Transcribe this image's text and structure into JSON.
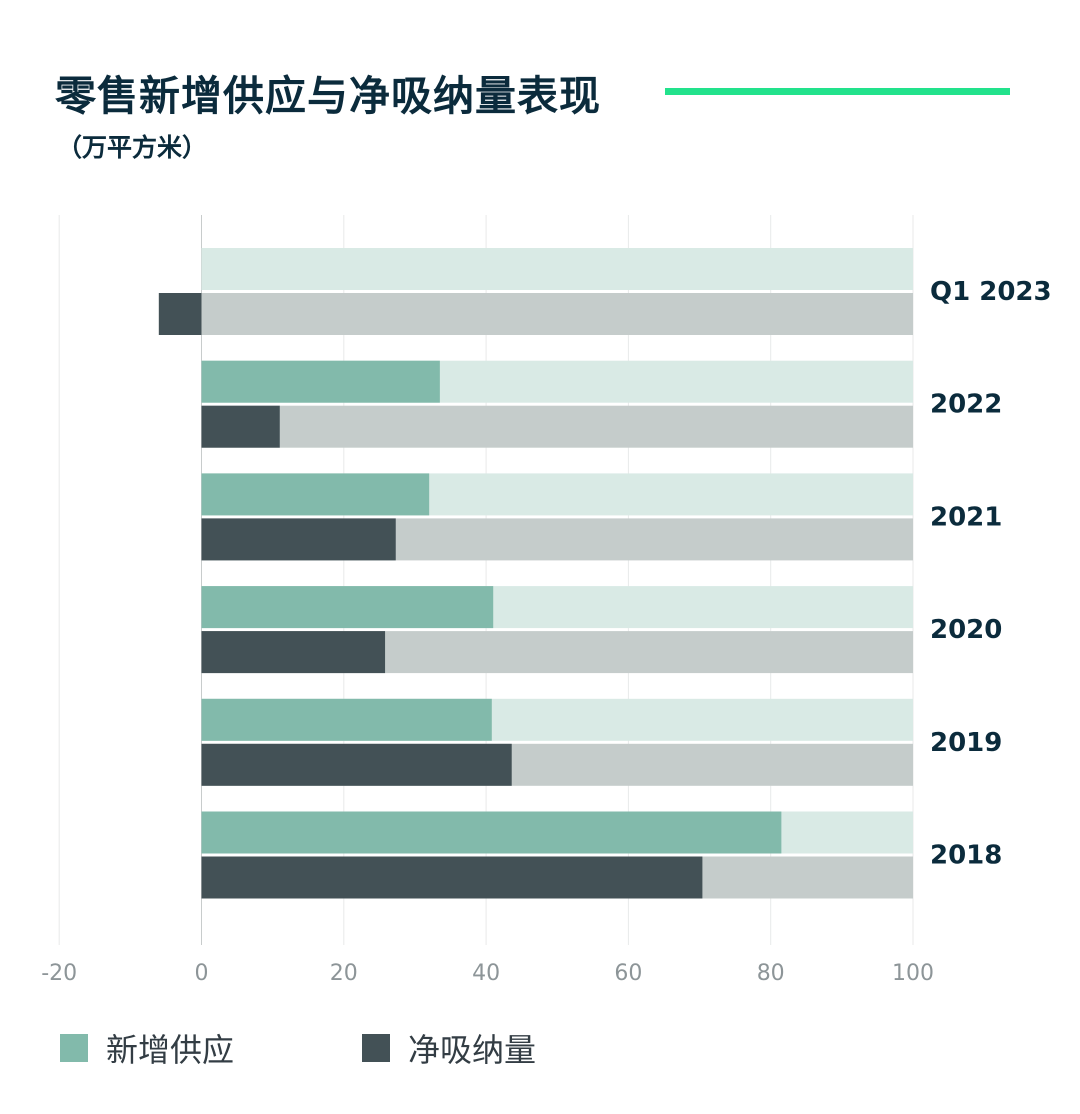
{
  "title": "零售新增供应与净吸纳量表现",
  "subtitle": "（万平方米）",
  "colors": {
    "title": "#0b2b3c",
    "accent_rule": "#22e28c",
    "supply": "#82baab",
    "supply_track": "#d9eae5",
    "absorption": "#435156",
    "absorption_track": "#c5cccb",
    "grid": "#e8eaea",
    "axis": "#c8cccc",
    "tick_text": "#8d9598",
    "category_text": "#0b2b3c"
  },
  "legend": {
    "supply_label": "新增供应",
    "absorption_label": "净吸纳量"
  },
  "chart_data": {
    "type": "bar",
    "orientation": "horizontal",
    "title": "零售新增供应与净吸纳量表现",
    "unit": "（万平方米）",
    "categories": [
      "Q1 2023",
      "2022",
      "2021",
      "2020",
      "2019",
      "2018"
    ],
    "series": [
      {
        "name": "新增供应",
        "values": [
          0,
          33.5,
          32,
          41,
          40.8,
          81.5
        ]
      },
      {
        "name": "净吸纳量",
        "values": [
          -6,
          11,
          27.3,
          25.8,
          43.6,
          70.4
        ]
      }
    ],
    "xlim": [
      -20,
      100
    ],
    "xticks": [
      "-20",
      "0",
      "20",
      "40",
      "60",
      "80",
      "100"
    ],
    "grid": true,
    "background_track_to": 100,
    "legend_position": "bottom"
  }
}
